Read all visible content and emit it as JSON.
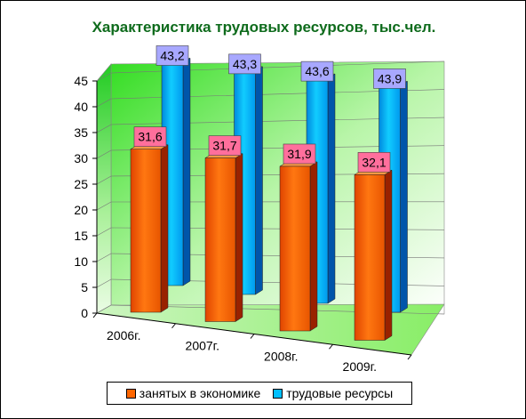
{
  "chart_data": {
    "type": "bar",
    "title": "Характеристика трудовых ресурсов, тыс.чел.",
    "categories": [
      "2006г.",
      "2007г.",
      "2008г.",
      "2009г."
    ],
    "series": [
      {
        "name": "занятых в экономике",
        "values": [
          "31,6",
          "31,7",
          "31,9",
          "32,1"
        ],
        "color": "#ff6600",
        "label_bg": "#ff6f9c"
      },
      {
        "name": "трудовые ресурсы",
        "values": [
          "43,2",
          "43,3",
          "43,6",
          "43,9"
        ],
        "color": "#00bfff",
        "label_bg": "#a8a8ff"
      }
    ],
    "y_ticks": [
      "0",
      "5",
      "10",
      "15",
      "20",
      "25",
      "30",
      "35",
      "40",
      "45"
    ],
    "ylim": [
      0,
      45
    ],
    "grid": true,
    "legend_position": "bottom"
  }
}
